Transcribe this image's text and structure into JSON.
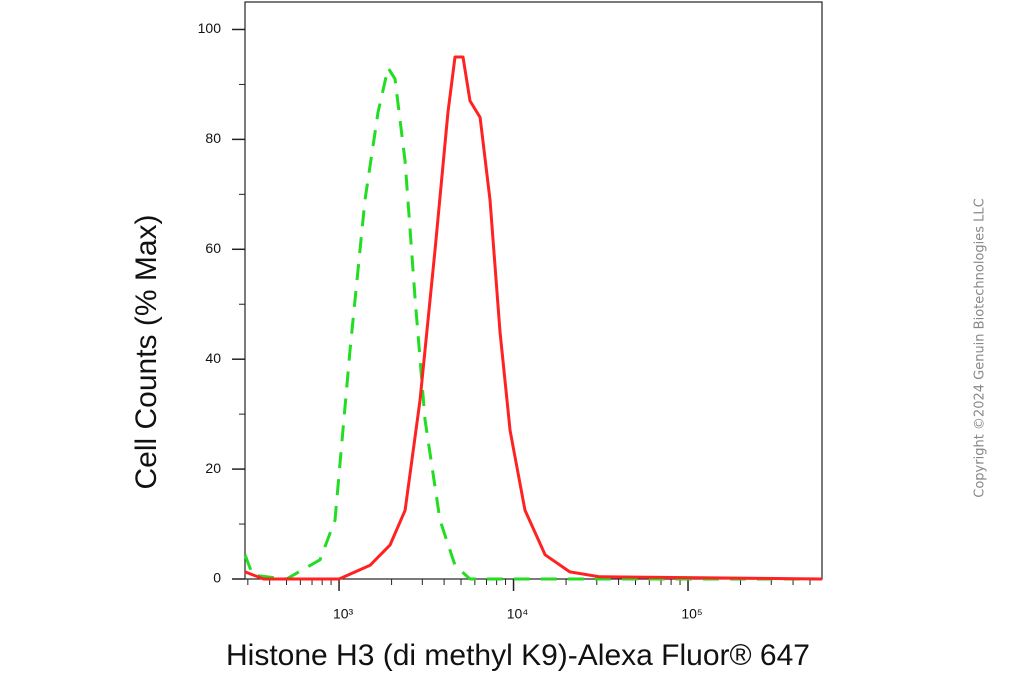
{
  "chart_data": {
    "type": "line",
    "x_label": "Histone H3 (di methyl K9)-Alexa Fluor® 647",
    "y_label": "Cell Counts (% Max)",
    "copyright": "Copyright ©2024 Genuin Biotechnologies LLC",
    "xscale": "log",
    "xlim": [
      289,
      586000
    ],
    "ylim": [
      0,
      105
    ],
    "xticks": [
      {
        "value": 1000,
        "label": "10³"
      },
      {
        "value": 10000,
        "label": "10⁴"
      },
      {
        "value": 100000,
        "label": "10⁵"
      }
    ],
    "xminorticks": [
      300,
      400,
      500,
      600,
      700,
      800,
      900,
      2000,
      3000,
      4000,
      5000,
      6000,
      7000,
      8000,
      9000,
      20000,
      30000,
      40000,
      50000,
      60000,
      70000,
      80000,
      90000,
      200000,
      300000,
      400000,
      500000
    ],
    "yticks": [
      0,
      20,
      40,
      60,
      80,
      100
    ],
    "yminorticks": [
      10,
      30,
      50,
      70,
      90
    ],
    "series": [
      {
        "color": "#22dd22",
        "dash": true,
        "x": [
          289,
          320,
          500,
          778,
          948,
          1156,
          1409,
          1673,
          1909,
          2093,
          2390,
          2727,
          3110,
          3790,
          4620,
          5630,
          586000
        ],
        "values": [
          4.4,
          0.7,
          0,
          3.5,
          10.7,
          41.6,
          69,
          85,
          93,
          91,
          76,
          51,
          29,
          10.7,
          2.5,
          0,
          0
        ]
      },
      {
        "color": "#ff2222",
        "dash": false,
        "x": [
          289,
          370,
          1000,
          1507,
          1961,
          2390,
          2910,
          3550,
          4210,
          4620,
          5130,
          5630,
          6430,
          7330,
          8360,
          9550,
          11640,
          15160,
          21000,
          31200,
          586000
        ],
        "values": [
          1.3,
          0,
          0,
          2.5,
          6.2,
          12.5,
          32.5,
          60,
          85,
          95,
          95,
          87,
          84,
          69,
          45,
          27,
          12.5,
          4.4,
          1.3,
          0.4,
          0
        ]
      }
    ]
  }
}
